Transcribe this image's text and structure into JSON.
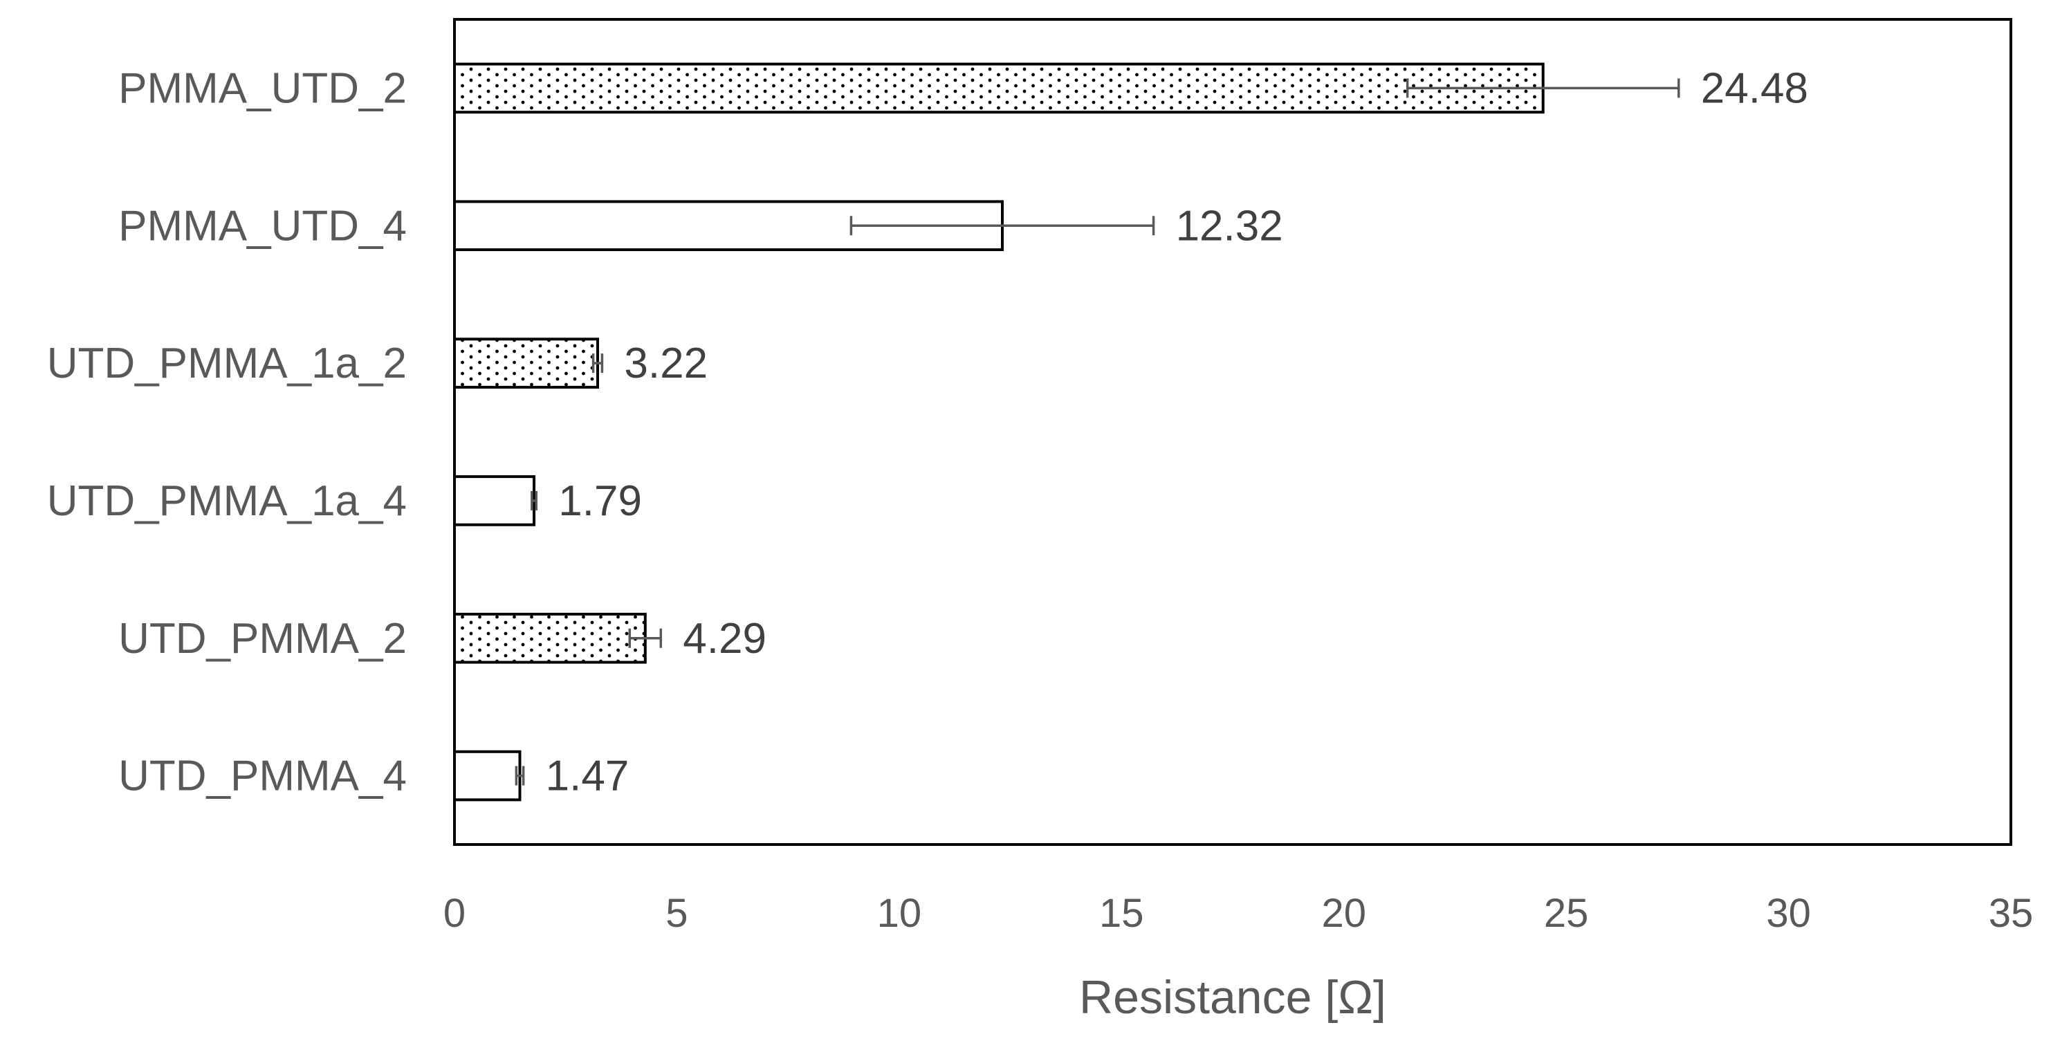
{
  "chart_data": {
    "type": "bar",
    "orientation": "horizontal",
    "title": "",
    "xlabel": "Resistance [Ω]",
    "ylabel": "",
    "xlim": [
      0,
      35
    ],
    "xticks": [
      0,
      5,
      10,
      15,
      20,
      25,
      30,
      35
    ],
    "grid": false,
    "legend": "none",
    "categories": [
      "PMMA_UTD_2",
      "PMMA_UTD_4",
      "UTD_PMMA_1a_2",
      "UTD_PMMA_1a_4",
      "UTD_PMMA_2",
      "UTD_PMMA_4"
    ],
    "values": [
      24.48,
      12.32,
      3.22,
      1.79,
      4.29,
      1.47
    ],
    "value_labels": [
      "24.48",
      "12.32",
      "3.22",
      "1.79",
      "4.29",
      "1.47"
    ],
    "errors": [
      3.05,
      3.4,
      0.1,
      0.05,
      0.35,
      0.08
    ],
    "patterns": [
      "dotted",
      "none",
      "dotted",
      "none",
      "dotted",
      "none"
    ],
    "colors": {
      "bar_stroke": "#000000",
      "bar_fill": "#ffffff",
      "dot": "#000000",
      "error_bar": "#595959",
      "text": "#595959"
    }
  }
}
